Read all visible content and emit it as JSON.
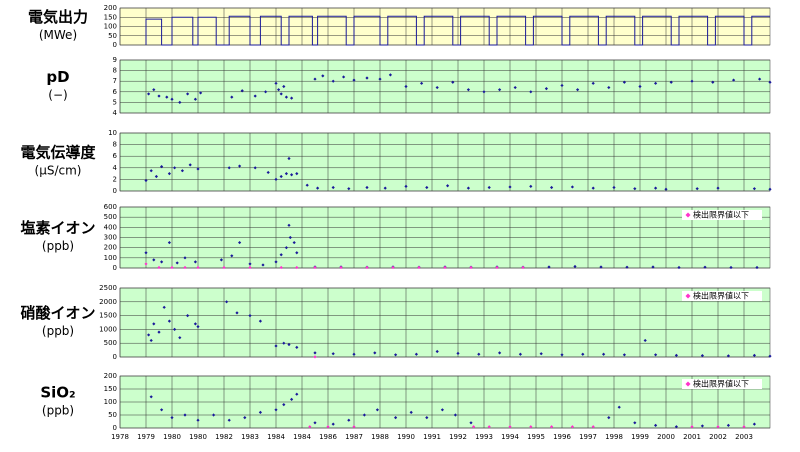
{
  "chart_data": [
    {
      "type": "line",
      "ylabel": [
        "電気出力",
        "(MWe)"
      ],
      "background": "#ffffcc",
      "color": "#1a1a9a",
      "ylim": [
        0,
        200
      ],
      "yticks": [
        0,
        50,
        100,
        150,
        200
      ],
      "series": [
        {
          "color": "#1a1a9a",
          "x": [
            1979.0,
            1979.0,
            1979.6,
            1979.6,
            1980.0,
            1980.0,
            1980.8,
            1980.8,
            1981.0,
            1981.0,
            1981.7,
            1981.7,
            1982.2,
            1982.2,
            1983.0,
            1983.0,
            1983.4,
            1983.4,
            1984.2,
            1984.2,
            1984.5,
            1984.5,
            1985.4,
            1985.4,
            1985.6,
            1985.6,
            1986.7,
            1986.7,
            1987.0,
            1987.0,
            1988.0,
            1988.0,
            1988.3,
            1988.3,
            1989.4,
            1989.4,
            1989.7,
            1989.7,
            1990.8,
            1990.8,
            1991.1,
            1991.1,
            1992.2,
            1992.2,
            1992.5,
            1992.5,
            1993.6,
            1993.6,
            1993.9,
            1993.9,
            1995.0,
            1995.0,
            1995.3,
            1995.3,
            1996.4,
            1996.4,
            1996.7,
            1996.7,
            1997.8,
            1997.8,
            1998.1,
            1998.1,
            1999.2,
            1999.2,
            1999.5,
            1999.5,
            2000.6,
            2000.6,
            2000.9,
            2000.9,
            2002.0,
            2002.0,
            2002.3,
            2002.3,
            2003.0
          ],
          "values": [
            0,
            140,
            140,
            0,
            0,
            150,
            150,
            0,
            0,
            150,
            150,
            0,
            0,
            155,
            155,
            0,
            0,
            155,
            155,
            0,
            0,
            155,
            155,
            0,
            0,
            155,
            155,
            0,
            0,
            155,
            155,
            0,
            0,
            155,
            155,
            0,
            0,
            155,
            155,
            0,
            0,
            155,
            155,
            0,
            0,
            155,
            155,
            0,
            0,
            155,
            155,
            0,
            0,
            155,
            155,
            0,
            0,
            155,
            155,
            0,
            0,
            155,
            155,
            0,
            0,
            155,
            155,
            0,
            0,
            155,
            155,
            0,
            0,
            155,
            155
          ]
        }
      ]
    },
    {
      "type": "scatter",
      "ylabel": [
        "pD",
        "(−)"
      ],
      "background": "#ccffcc",
      "ylim": [
        4,
        9
      ],
      "yticks": [
        4,
        5,
        6,
        7,
        8,
        9
      ],
      "series": [
        {
          "color": "#1a1a9a",
          "x": [
            1979.1,
            1979.3,
            1979.5,
            1979.8,
            1980.0,
            1980.3,
            1980.6,
            1980.9,
            1981.1,
            1982.3,
            1982.7,
            1983.2,
            1983.6,
            1984.0,
            1984.1,
            1984.2,
            1984.3,
            1984.4,
            1984.6,
            1985.5,
            1985.8,
            1986.2,
            1986.6,
            1987.0,
            1987.5,
            1988.0,
            1988.4,
            1989.0,
            1989.6,
            1990.2,
            1990.8,
            1991.4,
            1992.0,
            1992.6,
            1993.2,
            1993.8,
            1994.4,
            1995.0,
            1995.6,
            1996.2,
            1996.8,
            1997.4,
            1998.0,
            1998.6,
            1999.2,
            2000.0,
            2000.8,
            2001.6,
            2002.6,
            2003.0
          ],
          "values": [
            5.8,
            6.2,
            5.6,
            5.5,
            5.3,
            5.0,
            5.8,
            5.3,
            5.9,
            5.5,
            6.1,
            5.6,
            6.0,
            6.8,
            6.2,
            5.8,
            6.5,
            5.5,
            5.4,
            7.2,
            7.5,
            7.0,
            7.4,
            7.1,
            7.3,
            7.2,
            7.6,
            6.5,
            6.8,
            6.4,
            6.9,
            6.2,
            6.0,
            6.2,
            6.4,
            6.0,
            6.3,
            6.6,
            6.2,
            6.8,
            6.4,
            6.9,
            6.5,
            6.8,
            6.9,
            7.0,
            6.9,
            7.1,
            7.2,
            6.9
          ]
        }
      ]
    },
    {
      "type": "scatter",
      "ylabel": [
        "電気伝導度",
        "(μS/cm)"
      ],
      "background": "#ccffcc",
      "ylim": [
        0,
        10
      ],
      "yticks": [
        0,
        2,
        4,
        6,
        8,
        10
      ],
      "series": [
        {
          "color": "#1a1a9a",
          "x": [
            1979.0,
            1979.2,
            1979.4,
            1979.6,
            1979.9,
            1980.1,
            1980.4,
            1980.7,
            1981.0,
            1982.2,
            1982.6,
            1983.2,
            1983.7,
            1984.0,
            1984.2,
            1984.4,
            1984.5,
            1984.6,
            1984.8,
            1985.2,
            1985.6,
            1986.2,
            1986.8,
            1987.5,
            1988.2,
            1989.0,
            1989.8,
            1990.6,
            1991.4,
            1992.2,
            1993.0,
            1993.8,
            1994.6,
            1995.4,
            1996.2,
            1997.0,
            1997.8,
            1998.6,
            1999.0,
            2000.2,
            2001.0,
            2002.4,
            2003.0
          ],
          "values": [
            1.8,
            3.5,
            2.5,
            4.2,
            3.0,
            4.0,
            3.5,
            4.5,
            3.8,
            4.0,
            4.3,
            4.0,
            3.2,
            2.0,
            2.5,
            3.0,
            5.6,
            2.8,
            3.0,
            1.0,
            0.5,
            0.6,
            0.4,
            0.6,
            0.5,
            0.8,
            0.6,
            0.9,
            0.5,
            0.6,
            0.7,
            0.8,
            0.6,
            0.7,
            0.5,
            0.6,
            0.4,
            0.5,
            0.3,
            0.4,
            0.5,
            0.4,
            0.3
          ]
        }
      ]
    },
    {
      "type": "scatter",
      "ylabel": [
        "塩素イオン",
        "(ppb)"
      ],
      "background": "#ccffcc",
      "ylim": [
        0,
        600
      ],
      "yticks": [
        0,
        100,
        200,
        300,
        400,
        500,
        600
      ],
      "series": [
        {
          "color": "#1a1a9a",
          "x": [
            1979.0,
            1979.3,
            1979.6,
            1979.9,
            1980.2,
            1980.5,
            1980.9,
            1981.9,
            1982.3,
            1982.6,
            1983.0,
            1983.5,
            1984.0,
            1984.2,
            1984.4,
            1984.5,
            1984.55,
            1984.7,
            1984.8,
            1985.5,
            1986.5,
            1987.5,
            1988.5,
            1989.5,
            1990.5,
            1991.5,
            1992.5,
            1993.5,
            1994.5,
            1995.5,
            1996.5,
            1997.5,
            1998.5,
            1999.5,
            2000.5,
            2001.5,
            2002.5
          ],
          "values": [
            150,
            80,
            60,
            250,
            50,
            100,
            60,
            80,
            120,
            250,
            40,
            30,
            60,
            130,
            200,
            420,
            300,
            250,
            150,
            10,
            10,
            8,
            10,
            8,
            10,
            8,
            10,
            8,
            10,
            15,
            10,
            8,
            10,
            5,
            8,
            5,
            5
          ]
        },
        {
          "name": "検出限界値以下",
          "color": "#ff33cc",
          "x": [
            1979.0,
            1979.5,
            1980.0,
            1980.5,
            1981.0,
            1982.0,
            1983.0,
            1984.2,
            1984.8,
            1985.5,
            1986.5,
            1987.5,
            1988.5,
            1989.5,
            1990.5,
            1991.5,
            1992.5,
            1993.5
          ],
          "values": [
            40,
            5,
            5,
            5,
            5,
            5,
            5,
            5,
            5,
            5,
            5,
            5,
            5,
            5,
            5,
            5,
            5,
            5
          ]
        }
      ]
    },
    {
      "type": "scatter",
      "ylabel": [
        "硝酸イオン",
        "(ppb)"
      ],
      "background": "#ccffcc",
      "ylim": [
        0,
        2500
      ],
      "yticks": [
        0,
        500,
        1000,
        1500,
        2000,
        2500
      ],
      "series": [
        {
          "color": "#1a1a9a",
          "x": [
            1979.1,
            1979.2,
            1979.3,
            1979.5,
            1979.7,
            1979.9,
            1980.1,
            1980.3,
            1980.6,
            1980.9,
            1981.0,
            1982.1,
            1982.5,
            1983.0,
            1983.4,
            1984.0,
            1984.3,
            1984.5,
            1984.8,
            1985.5,
            1986.2,
            1987.0,
            1987.8,
            1988.6,
            1989.4,
            1990.2,
            1991.0,
            1991.8,
            1992.6,
            1993.4,
            1994.2,
            1995.0,
            1995.8,
            1996.6,
            1997.4,
            1998.2,
            1998.6,
            1999.4,
            2000.4,
            2001.4,
            2002.4,
            2003.0
          ],
          "values": [
            800,
            600,
            1200,
            900,
            1800,
            1300,
            1000,
            700,
            1500,
            1200,
            1100,
            2000,
            1600,
            1500,
            1300,
            400,
            500,
            450,
            350,
            150,
            120,
            100,
            150,
            80,
            100,
            200,
            130,
            100,
            150,
            100,
            120,
            80,
            100,
            100,
            80,
            600,
            80,
            60,
            50,
            40,
            60,
            30
          ]
        },
        {
          "name": "検出限界値以下",
          "color": "#ff33cc",
          "x": [
            1985.5
          ],
          "values": [
            5
          ]
        }
      ]
    },
    {
      "type": "scatter",
      "ylabel": [
        "SiO₂",
        "(ppb)"
      ],
      "background": "#ccffcc",
      "ylim": [
        0,
        200
      ],
      "yticks": [
        0,
        50,
        100,
        150,
        200
      ],
      "xlim": [
        1978,
        2003
      ],
      "xticks": [
        1978,
        1979,
        1980,
        {
          "value": 1981,
          "label": "1980"
        },
        1982,
        1983,
        1984,
        {
          "value": 1985,
          "label": "1984"
        },
        1986,
        1987,
        1988,
        {
          "value": 1989,
          "label": "1990"
        },
        {
          "value": 1990,
          "label": "1991"
        },
        {
          "value": 1991,
          "label": "1992"
        },
        {
          "value": 1992,
          "label": "1993"
        },
        {
          "value": 1993,
          "label": "1994"
        },
        {
          "value": 1994,
          "label": "1995"
        },
        {
          "value": 1995,
          "label": "1996"
        },
        {
          "value": 1996,
          "label": "1997"
        },
        {
          "value": 1997,
          "label": "1998"
        },
        {
          "value": 1998,
          "label": "1999"
        },
        {
          "value": 1999,
          "label": "2000"
        },
        {
          "value": 2000,
          "label": "2001"
        },
        {
          "value": 2001,
          "label": "2002"
        },
        {
          "value": 2002,
          "label": "2003"
        }
      ],
      "series": [
        {
          "color": "#1a1a9a",
          "x": [
            1979.2,
            1979.6,
            1980.0,
            1980.5,
            1981.0,
            1981.6,
            1982.2,
            1982.8,
            1983.4,
            1984.0,
            1984.3,
            1984.6,
            1984.8,
            1985.5,
            1986.2,
            1986.8,
            1987.4,
            1987.9,
            1988.6,
            1989.2,
            1989.8,
            1990.4,
            1990.9,
            1991.5,
            1996.8,
            1997.2,
            1997.8,
            1998.6,
            1999.4,
            2000.4,
            2001.4,
            2002.4
          ],
          "values": [
            120,
            70,
            40,
            50,
            30,
            50,
            30,
            40,
            60,
            70,
            90,
            110,
            130,
            20,
            15,
            30,
            50,
            70,
            40,
            60,
            40,
            70,
            50,
            20,
            40,
            80,
            20,
            10,
            5,
            8,
            10,
            15
          ]
        },
        {
          "name": "検出限界値以下",
          "color": "#ff33cc",
          "x": [
            1985.3,
            1986.0,
            1987.0,
            1991.6,
            1992.2,
            1993.0,
            1993.8,
            1994.6,
            1995.4,
            1996.2,
            2000.0,
            2001.0,
            2002.0
          ],
          "values": [
            5,
            5,
            5,
            5,
            5,
            5,
            5,
            5,
            5,
            5,
            5,
            5,
            5
          ]
        }
      ]
    }
  ]
}
